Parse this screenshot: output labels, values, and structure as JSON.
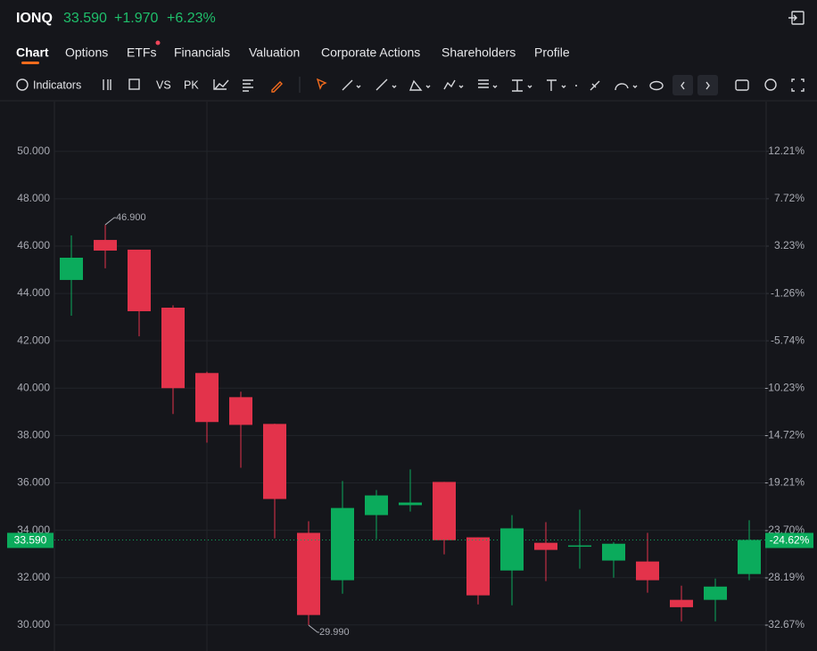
{
  "header": {
    "symbol": "IONQ",
    "price": "33.590",
    "change": "+1.970",
    "change_pct": "+6.23%"
  },
  "tabs": [
    "Chart",
    "Options",
    "ETFs",
    "Financials",
    "Valuation",
    "Corporate Actions",
    "Shareholders",
    "Profile"
  ],
  "toolbar": {
    "indicators": "Indicators",
    "vs": "VS",
    "pk": "PK"
  },
  "chart_data": {
    "type": "candlestick",
    "categories": [
      null,
      null,
      null,
      null,
      null,
      null,
      null,
      null,
      null,
      null,
      null,
      null,
      null,
      null,
      null,
      null,
      null,
      null,
      null,
      null,
      null
    ],
    "open": [
      44.57,
      46.26,
      45.85,
      43.4,
      40.64,
      39.62,
      38.49,
      33.89,
      31.89,
      34.64,
      35.06,
      36.04,
      33.7,
      32.3,
      33.47,
      33.34,
      32.72,
      32.68,
      31.06,
      31.06,
      32.15
    ],
    "high": [
      46.45,
      46.9,
      45.85,
      43.5,
      40.7,
      39.85,
      38.5,
      34.38,
      36.08,
      35.7,
      36.57,
      36.04,
      33.7,
      34.64,
      34.34,
      34.87,
      33.5,
      33.89,
      31.66,
      31.96,
      34.42
    ],
    "low": [
      43.06,
      45.06,
      42.19,
      38.91,
      37.7,
      36.64,
      33.66,
      29.99,
      31.32,
      33.62,
      34.79,
      32.98,
      30.87,
      30.83,
      31.85,
      32.38,
      32.0,
      31.36,
      30.15,
      30.15,
      31.89
    ],
    "close": [
      45.51,
      45.81,
      43.25,
      40.0,
      38.57,
      38.45,
      35.32,
      30.42,
      34.94,
      35.47,
      35.17,
      33.58,
      31.25,
      34.08,
      33.17,
      33.36,
      33.43,
      31.89,
      30.75,
      31.62,
      33.59
    ],
    "up_color": "#0bab5c",
    "down_color": "#e3334b",
    "ylim": [
      28.9,
      52.1
    ],
    "yticks": [
      {
        "value": 30,
        "label": "30.000"
      },
      {
        "value": 32,
        "label": "32.000"
      },
      {
        "value": 34,
        "label": "34.000"
      },
      {
        "value": 36,
        "label": "36.000"
      },
      {
        "value": 38,
        "label": "38.000"
      },
      {
        "value": 40,
        "label": "40.000"
      },
      {
        "value": 42,
        "label": "42.000"
      },
      {
        "value": 44,
        "label": "44.000"
      },
      {
        "value": 46,
        "label": "46.000"
      },
      {
        "value": 48,
        "label": "48.000"
      },
      {
        "value": 50,
        "label": "50.000"
      }
    ],
    "y2lim": [
      -35.14,
      16.92
    ],
    "y2ticks": [
      {
        "value": -32.67,
        "label": "-32.67%"
      },
      {
        "value": -28.19,
        "label": "-28.19%"
      },
      {
        "value": -23.7,
        "label": "-23.70%"
      },
      {
        "value": -19.21,
        "label": "-19.21%"
      },
      {
        "value": -14.72,
        "label": "-14.72%"
      },
      {
        "value": -10.23,
        "label": "-10.23%"
      },
      {
        "value": -5.74,
        "label": "-5.74%"
      },
      {
        "value": -1.26,
        "label": "-1.26%"
      },
      {
        "value": 3.23,
        "label": "3.23%"
      },
      {
        "value": 7.72,
        "label": "7.72%"
      },
      {
        "value": 12.21,
        "label": "12.21%"
      }
    ],
    "last_price": {
      "value": 33.59,
      "label": "33.590"
    },
    "last_change": {
      "value": -24.62,
      "label": "-24.62%"
    },
    "annotations": [
      {
        "text": "46.900",
        "value": 46.9
      },
      {
        "text": "29.990",
        "value": 29.99
      }
    ],
    "grid": true
  }
}
